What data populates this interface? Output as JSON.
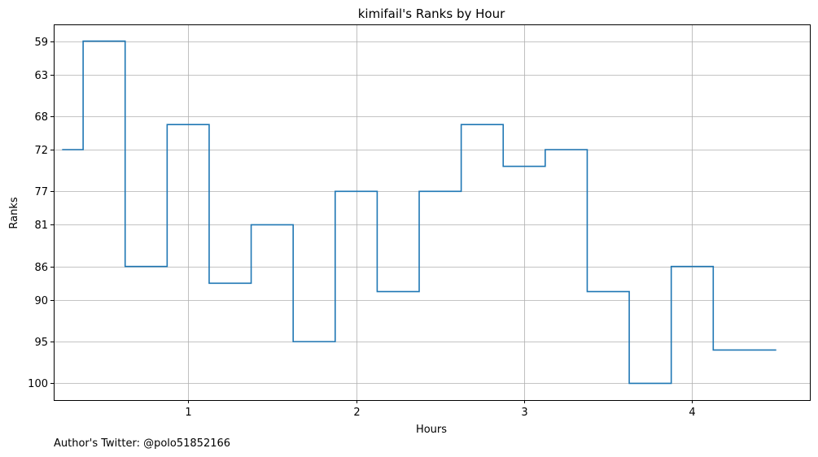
{
  "chart_data": {
    "type": "line",
    "drawstyle": "steps-mid",
    "title": "kimifail's Ranks by Hour",
    "xlabel": "Hours",
    "ylabel": "Ranks",
    "xlim": [
      0.2,
      4.7
    ],
    "ylim": [
      102,
      57
    ],
    "y_inverted": true,
    "xticks": [
      1,
      2,
      3,
      4
    ],
    "xtick_labels": [
      "1",
      "2",
      "3",
      "4"
    ],
    "yticks": [
      59,
      63,
      68,
      72,
      77,
      81,
      86,
      90,
      95,
      100
    ],
    "ytick_labels": [
      "59",
      "63",
      "68",
      "72",
      "77",
      "81",
      "86",
      "90",
      "95",
      "100"
    ],
    "grid": true,
    "color": "#1f77b4",
    "series": [
      {
        "x": [
          0.25,
          0.5,
          0.75,
          1.0,
          1.25,
          1.5,
          1.75,
          2.0,
          2.25,
          2.5,
          2.75,
          3.0,
          3.25,
          3.5,
          3.75,
          4.0,
          4.25,
          4.5
        ],
        "y": [
          72,
          59,
          86,
          69,
          88,
          81,
          95,
          77,
          89,
          77,
          69,
          74,
          72,
          89,
          100,
          86,
          96,
          96
        ]
      }
    ]
  },
  "footer": {
    "text": "Author's Twitter: @polo51852166"
  }
}
